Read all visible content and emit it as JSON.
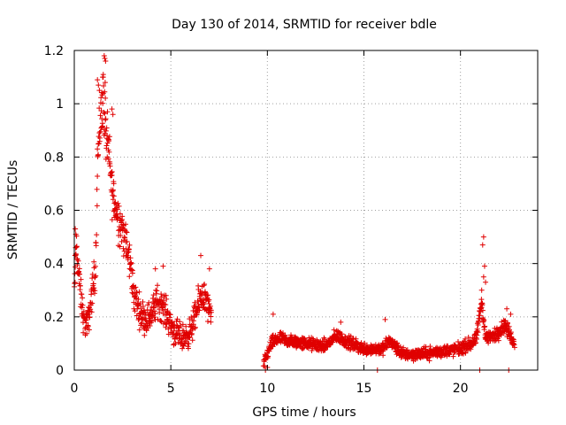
{
  "chart_data": {
    "type": "scatter",
    "title": "Day 130 of 2014, SRMTID for receiver bdle",
    "xlabel": "GPS time / hours",
    "ylabel": "SRMTID / TECUs",
    "xlim": [
      0,
      24
    ],
    "ylim": [
      0,
      1.2
    ],
    "xticks": [
      0,
      5,
      10,
      15,
      20
    ],
    "yticks": [
      0,
      0.2,
      0.4,
      0.6,
      0.8,
      1,
      1.2
    ],
    "xtick_labels": [
      "0",
      "5",
      "10",
      "15",
      "20"
    ],
    "ytick_labels": [
      "0",
      "0.2",
      "0.4",
      "0.6",
      "0.8",
      "1",
      "1.2"
    ],
    "grid": true,
    "marker": "+",
    "marker_color": "#e00000",
    "series": [
      {
        "name": "SRMTID",
        "segments": [
          {
            "x_start": 0.0,
            "x_end": 7.1,
            "profile": [
              [
                0.0,
                0.28
              ],
              [
                0.1,
                0.48
              ],
              [
                0.3,
                0.3
              ],
              [
                0.5,
                0.18
              ],
              [
                0.7,
                0.17
              ],
              [
                0.9,
                0.28
              ],
              [
                1.1,
                0.38
              ],
              [
                1.2,
                0.78
              ],
              [
                1.35,
                0.95
              ],
              [
                1.5,
                1.02
              ],
              [
                1.65,
                0.88
              ],
              [
                1.8,
                0.8
              ],
              [
                1.95,
                0.68
              ],
              [
                2.1,
                0.62
              ],
              [
                2.3,
                0.57
              ],
              [
                2.5,
                0.53
              ],
              [
                2.7,
                0.46
              ],
              [
                2.9,
                0.4
              ],
              [
                3.1,
                0.28
              ],
              [
                3.4,
                0.22
              ],
              [
                3.7,
                0.19
              ],
              [
                4.0,
                0.21
              ],
              [
                4.3,
                0.26
              ],
              [
                4.6,
                0.24
              ],
              [
                4.9,
                0.19
              ],
              [
                5.2,
                0.14
              ],
              [
                5.6,
                0.12
              ],
              [
                6.0,
                0.14
              ],
              [
                6.3,
                0.21
              ],
              [
                6.6,
                0.29
              ],
              [
                6.9,
                0.24
              ],
              [
                7.1,
                0.19
              ]
            ],
            "spread": 0.07
          },
          {
            "x_start": 9.8,
            "x_end": 22.8,
            "profile": [
              [
                9.8,
                0.02
              ],
              [
                10.2,
                0.1
              ],
              [
                10.6,
                0.12
              ],
              [
                11.0,
                0.11
              ],
              [
                12.0,
                0.1
              ],
              [
                13.0,
                0.09
              ],
              [
                13.6,
                0.13
              ],
              [
                14.0,
                0.11
              ],
              [
                15.0,
                0.08
              ],
              [
                16.0,
                0.08
              ],
              [
                16.3,
                0.11
              ],
              [
                17.0,
                0.06
              ],
              [
                18.0,
                0.06
              ],
              [
                19.0,
                0.07
              ],
              [
                20.0,
                0.08
              ],
              [
                20.8,
                0.11
              ],
              [
                21.1,
                0.26
              ],
              [
                21.3,
                0.12
              ],
              [
                21.8,
                0.13
              ],
              [
                22.3,
                0.17
              ],
              [
                22.8,
                0.1
              ]
            ],
            "spread": 0.035
          }
        ],
        "highlights": [
          {
            "x": 1.58,
            "y": 1.17
          },
          {
            "x": 1.55,
            "y": 1.18
          },
          {
            "x": 1.62,
            "y": 1.16
          },
          {
            "x": 1.2,
            "y": 1.09
          },
          {
            "x": 1.25,
            "y": 1.07
          },
          {
            "x": 1.5,
            "y": 1.11
          },
          {
            "x": 1.47,
            "y": 1.1
          },
          {
            "x": 1.6,
            "y": 1.08
          },
          {
            "x": 1.3,
            "y": 1.05
          },
          {
            "x": 1.95,
            "y": 0.98
          },
          {
            "x": 2.0,
            "y": 0.96
          },
          {
            "x": 1.7,
            "y": 0.88
          },
          {
            "x": 0.05,
            "y": 0.53
          },
          {
            "x": 0.08,
            "y": 0.51
          },
          {
            "x": 6.55,
            "y": 0.43
          },
          {
            "x": 7.0,
            "y": 0.38
          },
          {
            "x": 4.6,
            "y": 0.39
          },
          {
            "x": 4.2,
            "y": 0.38
          },
          {
            "x": 10.3,
            "y": 0.21
          },
          {
            "x": 16.1,
            "y": 0.19
          },
          {
            "x": 13.8,
            "y": 0.18
          },
          {
            "x": 21.2,
            "y": 0.5
          },
          {
            "x": 21.15,
            "y": 0.47
          },
          {
            "x": 21.25,
            "y": 0.39
          },
          {
            "x": 21.2,
            "y": 0.35
          },
          {
            "x": 21.3,
            "y": 0.33
          },
          {
            "x": 21.1,
            "y": 0.3
          },
          {
            "x": 22.4,
            "y": 0.23
          },
          {
            "x": 22.6,
            "y": 0.21
          },
          {
            "x": 9.9,
            "y": 0.0
          },
          {
            "x": 10.0,
            "y": 0.01
          },
          {
            "x": 15.7,
            "y": 0.0
          },
          {
            "x": 21.0,
            "y": 0.0
          },
          {
            "x": 22.5,
            "y": 0.0
          }
        ]
      }
    ]
  }
}
